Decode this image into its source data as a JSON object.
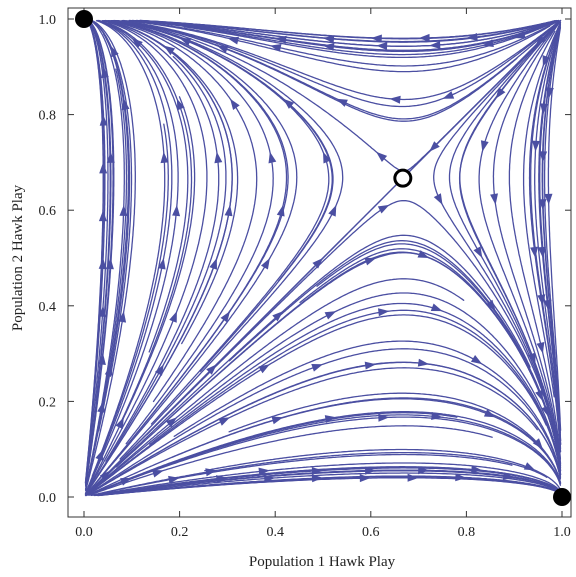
{
  "chart_data": {
    "type": "stream",
    "title": "",
    "xlabel": "Population 1 Hawk Play",
    "ylabel": "Population 2 Hawk Play",
    "xlim": [
      0,
      1
    ],
    "ylim": [
      0,
      1
    ],
    "xticks": [
      "0.0",
      "0.2",
      "0.4",
      "0.6",
      "0.8",
      "1.0"
    ],
    "yticks": [
      "0.0",
      "0.2",
      "0.4",
      "0.6",
      "0.8",
      "1.0"
    ],
    "grid": false,
    "stream_color": "#4b4fa2",
    "field": {
      "interior_equilibrium": [
        0.667,
        0.667
      ],
      "x_dot": "x(1-x)(2/3 - y)",
      "y_dot": "y(1-y)(2/3 - x)"
    },
    "equilibria": [
      {
        "x": 0.0,
        "y": 1.0,
        "stable": true
      },
      {
        "x": 1.0,
        "y": 0.0,
        "stable": true
      },
      {
        "x": 0.667,
        "y": 0.667,
        "stable": false
      }
    ]
  }
}
